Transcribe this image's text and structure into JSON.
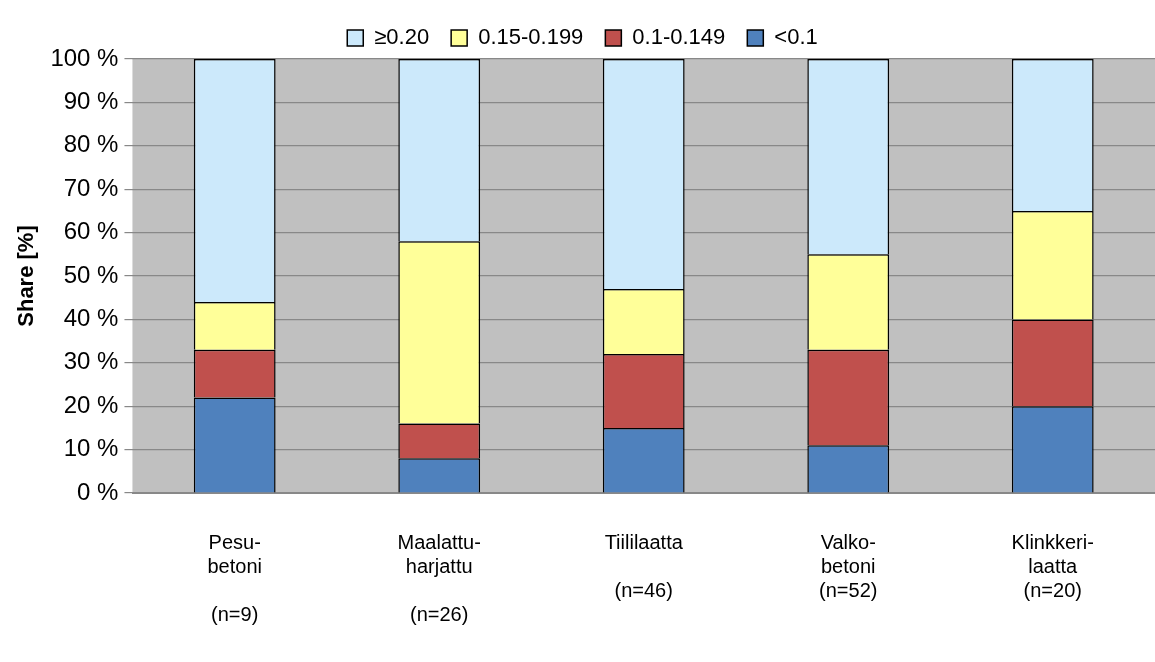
{
  "chart_data": {
    "type": "bar",
    "stacked": true,
    "ylabel": "Share [%]",
    "categories": [
      "Pesu-\nbetoni\n\n(n=9)",
      "Maalattu-\nharjattu\n\n(n=26)",
      "Tiililaatta\n\n(n=46)",
      "Valko-\nbetoni\n(n=52)",
      "Klinkkeri-\nlaatta\n(n=20)"
    ],
    "series": [
      {
        "name": "<0.1",
        "color": "#4f81bd",
        "values": [
          22,
          8,
          15,
          11,
          20
        ]
      },
      {
        "name": "0.1-0.149",
        "color": "#c0504d",
        "values": [
          11,
          8,
          17,
          22,
          20
        ]
      },
      {
        "name": "0.15-0.199",
        "color": "#ffff99",
        "values": [
          11,
          42,
          15,
          22,
          25
        ]
      },
      {
        "name": "≥0.20",
        "color": "#cce9fb",
        "values": [
          56,
          42,
          53,
          45,
          35
        ]
      }
    ],
    "ylim": [
      0,
      100
    ],
    "yticks": [
      {
        "value": 0,
        "label": "0 %"
      },
      {
        "value": 10,
        "label": "10 %"
      },
      {
        "value": 20,
        "label": "20 %"
      },
      {
        "value": 30,
        "label": "30 %"
      },
      {
        "value": 40,
        "label": "40 %"
      },
      {
        "value": 50,
        "label": "50 %"
      },
      {
        "value": 60,
        "label": "60 %"
      },
      {
        "value": 70,
        "label": "70 %"
      },
      {
        "value": 80,
        "label": "80 %"
      },
      {
        "value": 90,
        "label": "90 %"
      },
      {
        "value": 100,
        "label": "100 %"
      }
    ],
    "grid": "y",
    "legend": "top"
  }
}
